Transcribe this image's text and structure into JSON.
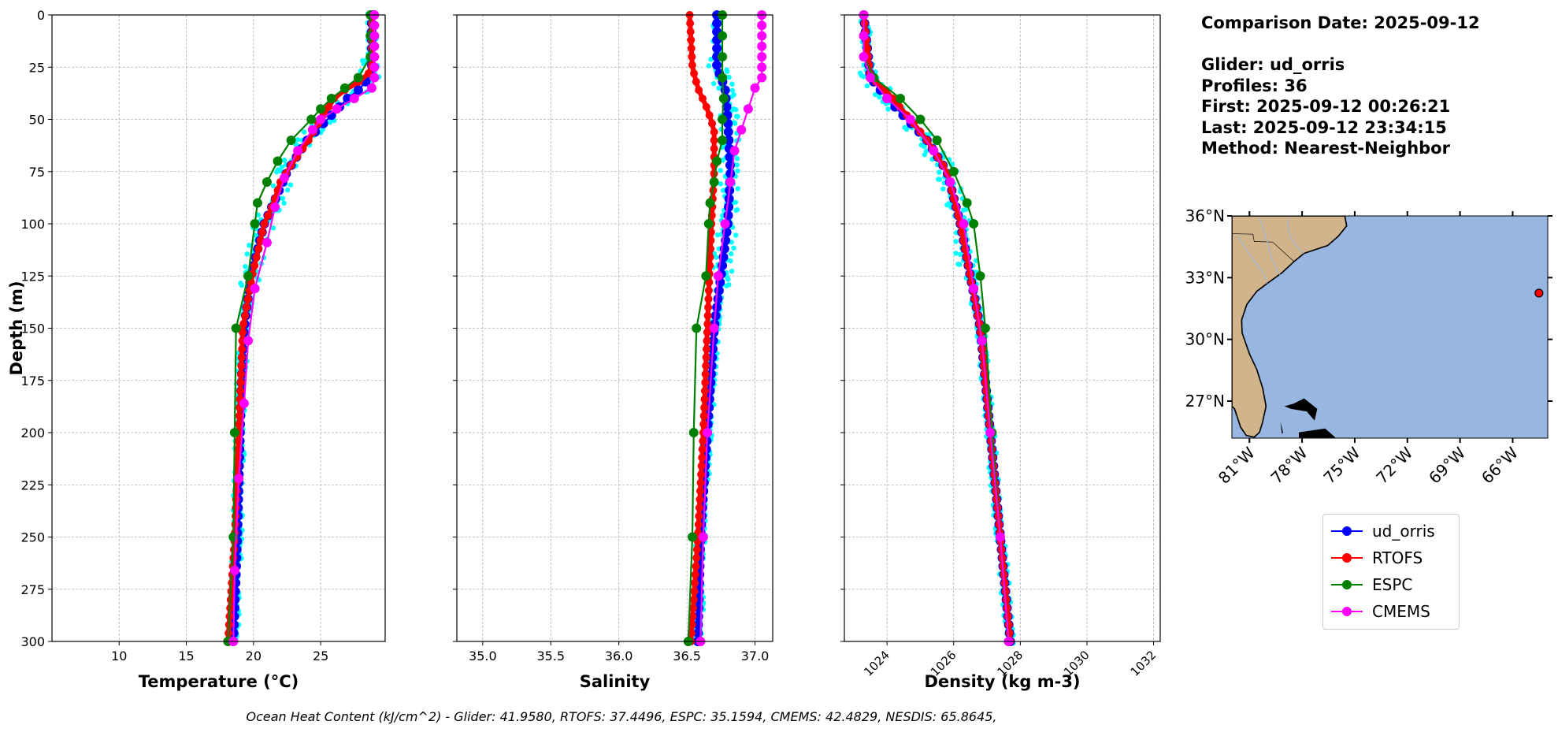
{
  "info": {
    "comparison_date": "Comparison Date: 2025-09-12",
    "glider": "Glider: ud_orris",
    "profiles": "Profiles: 36",
    "first": "First: 2025-09-12 00:26:21",
    "last": "Last: 2025-09-12 23:34:15",
    "method": "Method: Nearest-Neighbor"
  },
  "footer": "Ocean Heat Content (kJ/cm^2) - Glider: 41.9580,  RTOFS: 37.4496,  ESPC: 35.1594,  CMEMS: 42.4829,  NESDIS: 65.8645,",
  "legend": [
    {
      "name": "ud_orris",
      "color": "#0000ff"
    },
    {
      "name": "RTOFS",
      "color": "#ff0000"
    },
    {
      "name": "ESPC",
      "color": "#008000"
    },
    {
      "name": "CMEMS",
      "color": "#ff00ff"
    }
  ],
  "map": {
    "lon_ticks": [
      "81°W",
      "78°W",
      "75°W",
      "72°W",
      "69°W",
      "66°W"
    ],
    "lon_values": [
      -81,
      -78,
      -75,
      -72,
      -69,
      -66
    ],
    "lat_ticks": [
      "36°N",
      "33°N",
      "30°N",
      "27°N"
    ],
    "lat_values": [
      36,
      33,
      30,
      27
    ],
    "extent": {
      "lon": [
        -82,
        -64
      ],
      "lat": [
        25.2,
        36
      ]
    },
    "glider_position": {
      "lon": -64.5,
      "lat": 32.25
    },
    "land_color": "#d2b48c",
    "ocean_color": "#97b6e1"
  },
  "chart_data": [
    {
      "type": "line",
      "xlabel": "Temperature (°C)",
      "ylabel": "Depth (m)",
      "xlim": [
        5,
        29.8
      ],
      "ylim": [
        300,
        0
      ],
      "xticks": [
        10,
        15,
        20,
        25
      ],
      "yticks": [
        0,
        25,
        50,
        75,
        100,
        125,
        150,
        175,
        200,
        225,
        250,
        275,
        300
      ],
      "grid": true,
      "series": [
        {
          "name": "ud_orris",
          "depth": [
            0,
            25,
            30,
            35,
            40,
            50,
            60,
            75,
            90,
            100,
            125,
            150,
            175,
            200,
            250,
            300
          ],
          "values": [
            28.8,
            28.8,
            28.6,
            28.0,
            27.0,
            25.5,
            24.0,
            22.5,
            21.5,
            20.8,
            19.8,
            19.3,
            19.1,
            19.0,
            18.8,
            18.5
          ]
        },
        {
          "name": "RTOFS",
          "depth": [
            0,
            25,
            30,
            35,
            40,
            50,
            60,
            70,
            80,
            90,
            100,
            125,
            150,
            200,
            250,
            300
          ],
          "values": [
            28.8,
            28.8,
            28.4,
            27.0,
            26.0,
            25.0,
            24.1,
            23.0,
            22.0,
            21.5,
            20.8,
            19.9,
            19.2,
            18.9,
            18.6,
            18.1
          ]
        },
        {
          "name": "ESPC",
          "depth": [
            0,
            10,
            20,
            30,
            35,
            40,
            45,
            50,
            60,
            70,
            80,
            90,
            100,
            125,
            150,
            200,
            250,
            300
          ],
          "values": [
            28.7,
            28.7,
            28.7,
            27.8,
            26.8,
            25.8,
            25.0,
            24.3,
            22.8,
            21.8,
            21.0,
            20.3,
            20.1,
            19.6,
            18.7,
            18.6,
            18.5,
            18.1
          ]
        },
        {
          "name": "CMEMS",
          "depth": [
            0,
            5,
            10,
            15,
            20,
            25,
            30,
            35,
            40,
            45,
            50,
            55,
            65,
            78,
            92,
            109,
            131,
            156,
            186,
            222,
            266,
            300
          ],
          "values": [
            29.0,
            29.0,
            29.0,
            29.0,
            29.0,
            29.0,
            29.0,
            28.8,
            27.5,
            26.2,
            25.0,
            24.4,
            23.3,
            22.3,
            21.6,
            21.0,
            20.1,
            19.6,
            19.3,
            18.9,
            18.6,
            18.5
          ]
        }
      ]
    },
    {
      "type": "line",
      "xlabel": "Salinity",
      "xlim": [
        34.81,
        37.13
      ],
      "ylim": [
        300,
        0
      ],
      "xticks": [
        35.0,
        35.5,
        36.0,
        36.5,
        37.0
      ],
      "xtick_labels": [
        "35.0",
        "35.5",
        "36.0",
        "36.5",
        "37.0"
      ],
      "grid": true,
      "series": [
        {
          "name": "ud_orris",
          "depth": [
            0,
            25,
            35,
            50,
            75,
            100,
            125,
            150,
            200,
            250,
            300
          ],
          "values": [
            36.72,
            36.72,
            36.78,
            36.8,
            36.82,
            36.8,
            36.75,
            36.7,
            36.65,
            36.6,
            36.58
          ]
        },
        {
          "name": "RTOFS",
          "depth": [
            0,
            25,
            35,
            45,
            55,
            75,
            100,
            150,
            200,
            250,
            300
          ],
          "values": [
            36.52,
            36.54,
            36.58,
            36.65,
            36.7,
            36.7,
            36.68,
            36.65,
            36.62,
            36.58,
            36.53
          ]
        },
        {
          "name": "ESPC",
          "depth": [
            0,
            10,
            20,
            30,
            40,
            50,
            60,
            70,
            80,
            90,
            100,
            125,
            150,
            200,
            250,
            300
          ],
          "values": [
            36.76,
            36.76,
            36.76,
            36.76,
            36.77,
            36.76,
            36.76,
            36.72,
            36.7,
            36.67,
            36.66,
            36.64,
            36.57,
            36.55,
            36.54,
            36.51
          ]
        },
        {
          "name": "CMEMS",
          "depth": [
            0,
            5,
            10,
            15,
            20,
            25,
            30,
            35,
            45,
            55,
            65,
            80,
            100,
            125,
            150,
            200,
            250,
            300
          ],
          "values": [
            37.05,
            37.05,
            37.05,
            37.05,
            37.05,
            37.05,
            37.05,
            37.0,
            36.95,
            36.9,
            36.85,
            36.82,
            36.78,
            36.73,
            36.7,
            36.65,
            36.62,
            36.6
          ]
        }
      ]
    },
    {
      "type": "line",
      "xlabel": "Density (kg m-3)",
      "xlim": [
        1022.72,
        1032.2
      ],
      "ylim": [
        300,
        0
      ],
      "xticks": [
        1024,
        1026,
        1028,
        1030,
        1032
      ],
      "grid": true,
      "series": [
        {
          "name": "ud_orris",
          "depth": [
            0,
            30,
            40,
            50,
            60,
            75,
            100,
            125,
            150,
            200,
            250,
            300
          ],
          "values": [
            1023.3,
            1023.5,
            1024.0,
            1024.6,
            1025.2,
            1025.8,
            1026.2,
            1026.5,
            1026.8,
            1027.1,
            1027.4,
            1027.7
          ]
        },
        {
          "name": "RTOFS",
          "depth": [
            0,
            30,
            35,
            50,
            60,
            75,
            100,
            125,
            150,
            200,
            250,
            300
          ],
          "values": [
            1023.3,
            1023.5,
            1023.9,
            1024.7,
            1025.2,
            1025.8,
            1026.2,
            1026.5,
            1026.8,
            1027.1,
            1027.4,
            1027.7
          ]
        },
        {
          "name": "ESPC",
          "depth": [
            0,
            10,
            20,
            30,
            40,
            50,
            60,
            75,
            90,
            100,
            125,
            150,
            200,
            250,
            300
          ],
          "values": [
            1023.3,
            1023.3,
            1023.3,
            1023.6,
            1024.4,
            1025.0,
            1025.5,
            1026.0,
            1026.4,
            1026.6,
            1026.8,
            1026.95,
            1027.15,
            1027.4,
            1027.65
          ]
        },
        {
          "name": "CMEMS",
          "depth": [
            0,
            10,
            20,
            30,
            40,
            50,
            65,
            80,
            100,
            131,
            156,
            200,
            250,
            300
          ],
          "values": [
            1023.3,
            1023.3,
            1023.3,
            1023.5,
            1024.0,
            1024.7,
            1025.4,
            1025.9,
            1026.3,
            1026.6,
            1026.85,
            1027.1,
            1027.4,
            1027.65
          ]
        }
      ]
    }
  ]
}
